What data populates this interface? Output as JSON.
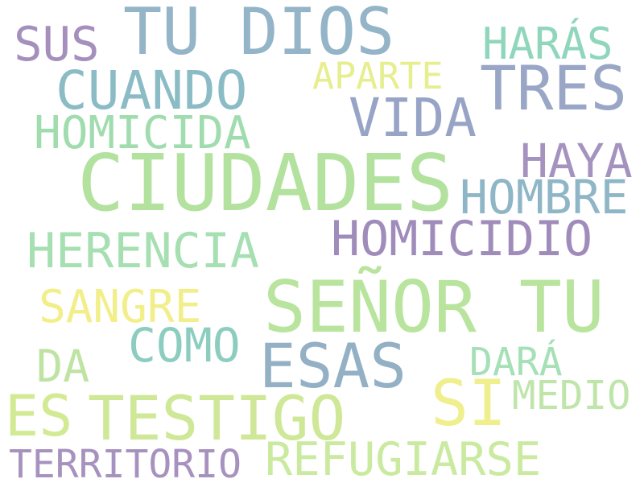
{
  "words": [
    {
      "text": "TU DIOS",
      "color": "#94b4c8"
    },
    {
      "text": "SUS",
      "color": "#a58fbd"
    },
    {
      "text": "HARÁS",
      "color": "#8fd6bc"
    },
    {
      "text": "APARTE",
      "color": "#e6ee8e"
    },
    {
      "text": "TRES",
      "color": "#9aa6c6"
    },
    {
      "text": "CUANDO",
      "color": "#8bbcc6"
    },
    {
      "text": "VIDA",
      "color": "#98a4c6"
    },
    {
      "text": "HOMICIDA",
      "color": "#a0dcae"
    },
    {
      "text": "HAYA",
      "color": "#a593bf"
    },
    {
      "text": "CIUDADES",
      "color": "#b2e29e"
    },
    {
      "text": "HOMBRE",
      "color": "#8fb6c6"
    },
    {
      "text": "HOMICIDIO",
      "color": "#a08cba"
    },
    {
      "text": "HERENCIA",
      "color": "#a6dfb2"
    },
    {
      "text": "SEÑOR TU",
      "color": "#b9e49e"
    },
    {
      "text": "SANGRE",
      "color": "#f2ef8a"
    },
    {
      "text": "COMO",
      "color": "#8ccdc0"
    },
    {
      "text": "ESAS",
      "color": "#94b0c4"
    },
    {
      "text": "DA",
      "color": "#bfe3a3"
    },
    {
      "text": "DARÁ",
      "color": "#a6e0b6"
    },
    {
      "text": "SI",
      "color": "#efef8d"
    },
    {
      "text": "MEDIO",
      "color": "#bfe5ab"
    },
    {
      "text": "ES",
      "color": "#d2ea94"
    },
    {
      "text": "TESTIGO",
      "color": "#cfe897"
    },
    {
      "text": "TERRITORIO",
      "color": "#a792bf"
    },
    {
      "text": "REFUGIARSE",
      "color": "#c9ea9f"
    }
  ]
}
